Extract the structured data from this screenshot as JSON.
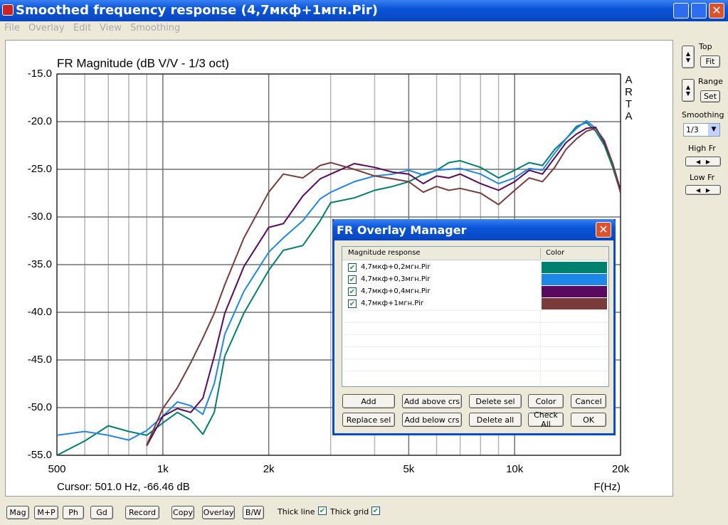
{
  "window": {
    "title": "Smoothed frequency response (4,7мкф+1мгн.Pir)",
    "menu": [
      "File",
      "Overlay",
      "Edit",
      "View",
      "Smoothing"
    ]
  },
  "chart_data": {
    "type": "line",
    "title": "FR Magnitude (dB V/V - 1/3 oct)",
    "watermark": "ARTA",
    "cursor_text": "Cursor: 501.0 Hz, -66.46 dB",
    "x_label": "F(Hz)",
    "log_x": true,
    "grid": true,
    "xlim": [
      500,
      20000
    ],
    "ylim": [
      -55,
      -15
    ],
    "xticks": [
      500,
      {
        "value": 1000,
        "label": "1k"
      },
      {
        "value": 2000,
        "label": "2k"
      },
      {
        "value": 5000,
        "label": "5k"
      },
      {
        "value": 10000,
        "label": "10k"
      },
      {
        "value": 20000,
        "label": "20k"
      }
    ],
    "minor_xticks": [
      600,
      700,
      800,
      900,
      3000,
      4000,
      6000,
      7000,
      8000,
      9000
    ],
    "yticks": [
      {
        "value": -15,
        "label": "-15.0"
      },
      {
        "value": -20,
        "label": "-20.0"
      },
      {
        "value": -25,
        "label": "-25.0"
      },
      {
        "value": -30,
        "label": "-30.0"
      },
      {
        "value": -35,
        "label": "-35.0"
      },
      {
        "value": -40,
        "label": "-40.0"
      },
      {
        "value": -45,
        "label": "-45.0"
      },
      {
        "value": -50,
        "label": "-50.0"
      },
      {
        "value": -55,
        "label": "-55.0"
      }
    ],
    "x": [
      500,
      600,
      700,
      800,
      900,
      1000,
      1100,
      1200,
      1300,
      1400,
      1500,
      1700,
      2000,
      2200,
      2500,
      2800,
      3000,
      3500,
      4000,
      4500,
      5000,
      5500,
      6000,
      6500,
      7000,
      8000,
      9000,
      10000,
      11000,
      12000,
      13000,
      14000,
      15000,
      16000,
      17000,
      18000,
      19000,
      20000
    ],
    "series": [
      {
        "name": "4,7мкф+0,2мгн.Pir",
        "color": "#00806e",
        "values": [
          -55,
          -53.5,
          -51.9,
          -52.5,
          -52.9,
          -51.6,
          -50.5,
          -51.3,
          -52.8,
          -50.5,
          -44.6,
          -40.1,
          -35.6,
          -33.5,
          -33.0,
          -30.4,
          -28.5,
          -28.0,
          -27.2,
          -26.8,
          -26.3,
          -25.5,
          -25.1,
          -24.3,
          -24.1,
          -24.8,
          -25.9,
          -25.1,
          -24.3,
          -24.6,
          -22.9,
          -21.8,
          -20.5,
          -20.1,
          -21.0,
          -22.5,
          -24.8,
          -27.4
        ]
      },
      {
        "name": "4,7мкф+0,3мгн.Pir",
        "color": "#1e88e8",
        "values": [
          -52.9,
          -52.5,
          -52.9,
          -53.4,
          -52.4,
          -50.9,
          -49.4,
          -49.8,
          -50.7,
          -47.5,
          -42.3,
          -37.8,
          -33.7,
          -32.2,
          -30.4,
          -28.1,
          -27.4,
          -26.3,
          -25.7,
          -25.5,
          -25.1,
          -25.6,
          -25.1,
          -25.0,
          -24.9,
          -25.5,
          -26.5,
          -25.9,
          -24.9,
          -25.1,
          -23.3,
          -21.8,
          -20.7,
          -19.9,
          -20.7,
          -22.2,
          -24.4,
          -27.2
        ]
      },
      {
        "name": "4,7мкф+0,4мгн.Pir",
        "color": "#5a0a5e",
        "values": [
          null,
          null,
          null,
          null,
          -54.0,
          -50.9,
          -50.1,
          -50.5,
          -49.0,
          -44.6,
          -40.1,
          -35.2,
          -31.1,
          -30.7,
          -27.8,
          -26.0,
          -25.5,
          -24.4,
          -24.8,
          -25.3,
          -25.5,
          -26.5,
          -25.7,
          -25.9,
          -25.5,
          -26.5,
          -27.2,
          -26.3,
          -25.1,
          -25.5,
          -23.8,
          -22.2,
          -21.3,
          -20.7,
          -20.6,
          -22.2,
          -24.4,
          -27.2
        ]
      },
      {
        "name": "4,7мкф+1мгн.Pir",
        "color": "#7a3c3a",
        "values": [
          null,
          null,
          null,
          null,
          -53.9,
          -50.1,
          -47.9,
          -45.3,
          -42.7,
          -40.1,
          -37.1,
          -32.2,
          -27.4,
          -25.5,
          -25.9,
          -24.6,
          -24.3,
          -25.0,
          -25.7,
          -26.0,
          -26.3,
          -27.4,
          -26.8,
          -27.2,
          -27.0,
          -27.5,
          -28.7,
          -27.2,
          -25.9,
          -26.3,
          -24.8,
          -22.9,
          -21.8,
          -21.0,
          -20.7,
          -22.0,
          -24.4,
          -27.5
        ]
      }
    ]
  },
  "overlay_manager": {
    "title": "FR Overlay Manager",
    "columns": [
      "Magnitude response",
      "Color"
    ],
    "buttons": [
      [
        "Add",
        "Add above crs",
        "Delete sel",
        "Color",
        "Cancel"
      ],
      [
        "Replace sel",
        "Add below crs",
        "Delete all",
        "Check All",
        "OK"
      ]
    ]
  },
  "side_panel": {
    "top_label": "Top",
    "fit": "Fit",
    "range_label": "Range",
    "set": "Set",
    "smoothing_label": "Smoothing",
    "smoothing_value": "1/3",
    "high_label": "High Fr",
    "low_label": "Low Fr"
  },
  "toolbar": {
    "buttons": [
      "Mag",
      "M+P",
      "Ph",
      "Gd",
      "Record",
      "Copy",
      "Overlay",
      "B/W"
    ],
    "checks": [
      "Thick line",
      "Thick grid"
    ]
  }
}
